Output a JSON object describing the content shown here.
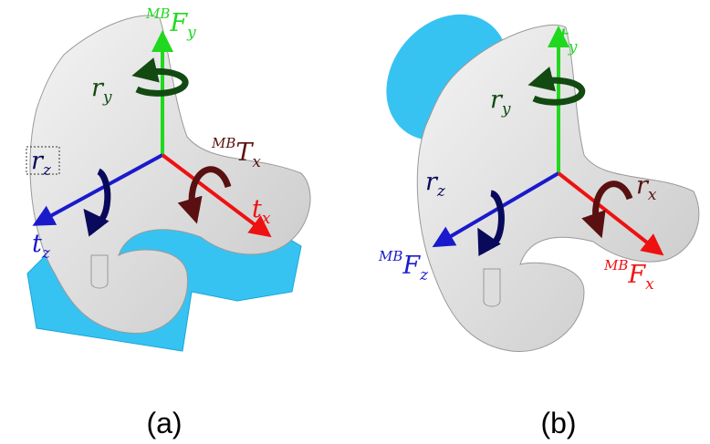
{
  "panels": [
    {
      "caption": "(a)",
      "labels": [
        {
          "sup": "MB",
          "main": "F",
          "sub": "y",
          "color": "#1fd81f"
        },
        {
          "main": "r",
          "sub": "y",
          "color": "#124a12"
        },
        {
          "main": "r",
          "sub": "z",
          "color": "#0a0a5c"
        },
        {
          "sup": "MB",
          "main": "T",
          "sub": "x",
          "color": "#5a1010"
        },
        {
          "main": "t",
          "sub": "x",
          "color": "#ee1111"
        },
        {
          "main": "t",
          "sub": "z",
          "color": "#1a1acc"
        }
      ]
    },
    {
      "caption": "(b)",
      "labels": [
        {
          "main": "t",
          "sub": "y",
          "color": "#1fd81f"
        },
        {
          "main": "r",
          "sub": "y",
          "color": "#124a12"
        },
        {
          "main": "r",
          "sub": "z",
          "color": "#0a0a5c"
        },
        {
          "main": "r",
          "sub": "x",
          "color": "#5a1010"
        },
        {
          "sup": "MB",
          "main": "F",
          "sub": "z",
          "color": "#1a1acc"
        },
        {
          "sup": "MB",
          "main": "F",
          "sub": "x",
          "color": "#ee1111"
        }
      ]
    }
  ]
}
